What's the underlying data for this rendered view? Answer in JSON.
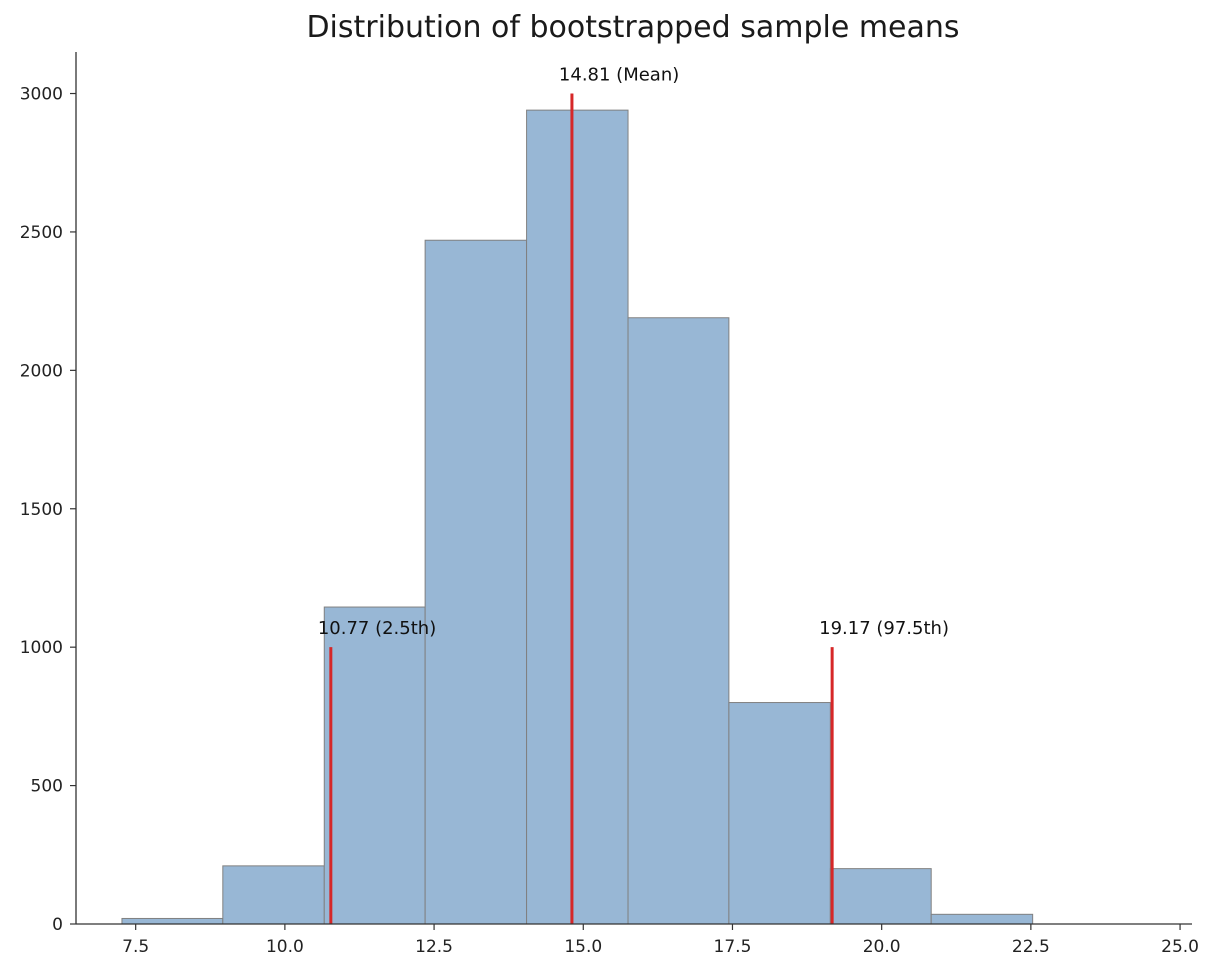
{
  "chart_data": {
    "type": "bar",
    "title": "Distribution of bootstrapped sample means",
    "xlabel": "",
    "ylabel": "",
    "xlim": [
      6.5,
      25.2
    ],
    "ylim": [
      0,
      3150
    ],
    "xticks": [
      7.5,
      10.0,
      12.5,
      15.0,
      17.5,
      20.0,
      22.5,
      25.0
    ],
    "xtick_labels": [
      "7.5",
      "10.0",
      "12.5",
      "15.0",
      "17.5",
      "20.0",
      "22.5",
      "25.0"
    ],
    "yticks": [
      0,
      500,
      1000,
      1500,
      2000,
      2500,
      3000
    ],
    "ytick_labels": [
      "0",
      "500",
      "1000",
      "1500",
      "2000",
      "2500",
      "3000"
    ],
    "grid": false,
    "bar_color": "#98b7d5",
    "bar_edge_color": "#808080",
    "line_color": "#d62728",
    "bins": [
      {
        "x0": 7.27,
        "x1": 8.96,
        "count": 20
      },
      {
        "x0": 8.96,
        "x1": 10.66,
        "count": 210
      },
      {
        "x0": 10.66,
        "x1": 12.35,
        "count": 1145
      },
      {
        "x0": 12.35,
        "x1": 14.05,
        "count": 2470
      },
      {
        "x0": 14.05,
        "x1": 15.75,
        "count": 2940
      },
      {
        "x0": 15.75,
        "x1": 17.44,
        "count": 2190
      },
      {
        "x0": 17.44,
        "x1": 19.14,
        "count": 800
      },
      {
        "x0": 19.14,
        "x1": 20.83,
        "count": 200
      },
      {
        "x0": 20.83,
        "x1": 22.53,
        "count": 35
      }
    ],
    "vlines": [
      {
        "x": 10.77,
        "ymax": 1000,
        "label": "10.77 (2.5th)"
      },
      {
        "x": 14.81,
        "ymax": 3000,
        "label": "14.81 (Mean)"
      },
      {
        "x": 19.17,
        "ymax": 1000,
        "label": "19.17 (97.5th)"
      }
    ]
  }
}
